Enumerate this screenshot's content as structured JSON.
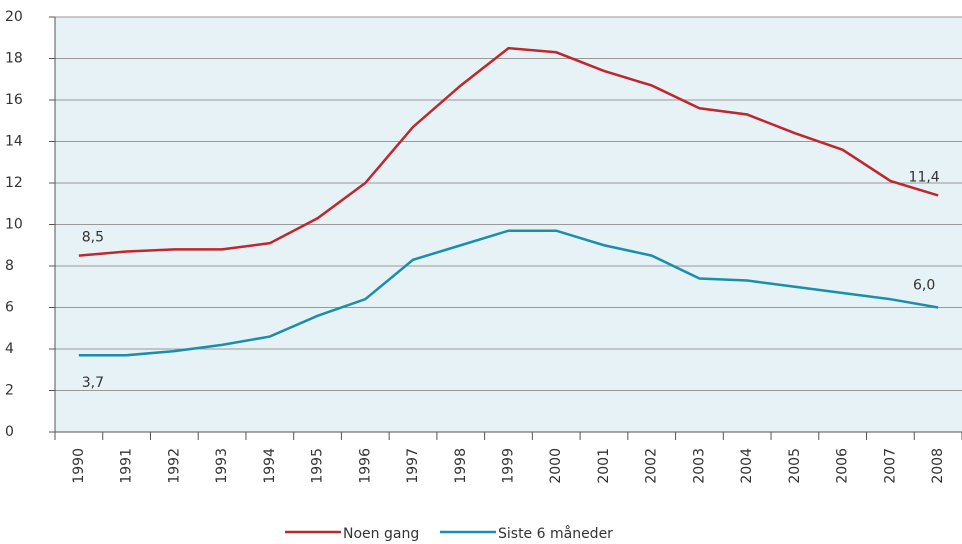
{
  "chart_data": {
    "type": "line",
    "categories": [
      "1990",
      "1991",
      "1992",
      "1993",
      "1994",
      "1995",
      "1996",
      "1997",
      "1998",
      "1999",
      "2000",
      "2001",
      "2002",
      "2003",
      "2004",
      "2005",
      "2006",
      "2007",
      "2008"
    ],
    "series": [
      {
        "name": "Noen gang",
        "color": "#c0272d",
        "values": [
          8.5,
          8.7,
          8.8,
          8.8,
          9.1,
          10.3,
          12.0,
          14.7,
          16.7,
          18.5,
          18.3,
          17.4,
          16.7,
          15.6,
          15.3,
          14.4,
          13.6,
          12.1,
          11.4
        ],
        "value_labels": [
          "8,5",
          null,
          null,
          null,
          null,
          null,
          null,
          null,
          null,
          null,
          null,
          null,
          null,
          null,
          null,
          null,
          null,
          null,
          "11,4"
        ]
      },
      {
        "name": "Siste 6 måneder",
        "color": "#1a8fad",
        "values": [
          3.7,
          3.7,
          3.9,
          4.2,
          4.6,
          5.6,
          6.4,
          8.3,
          9.0,
          9.7,
          9.7,
          9.0,
          8.5,
          7.4,
          7.3,
          7.0,
          6.7,
          6.4,
          6.0
        ],
        "value_labels": [
          "3,7",
          null,
          null,
          null,
          null,
          null,
          null,
          null,
          null,
          null,
          null,
          null,
          null,
          null,
          null,
          null,
          null,
          null,
          "6,0"
        ]
      }
    ],
    "ylim": [
      0,
      20
    ],
    "yticks": [
      0,
      2,
      4,
      6,
      8,
      10,
      12,
      14,
      16,
      18,
      20
    ],
    "grid": true
  }
}
